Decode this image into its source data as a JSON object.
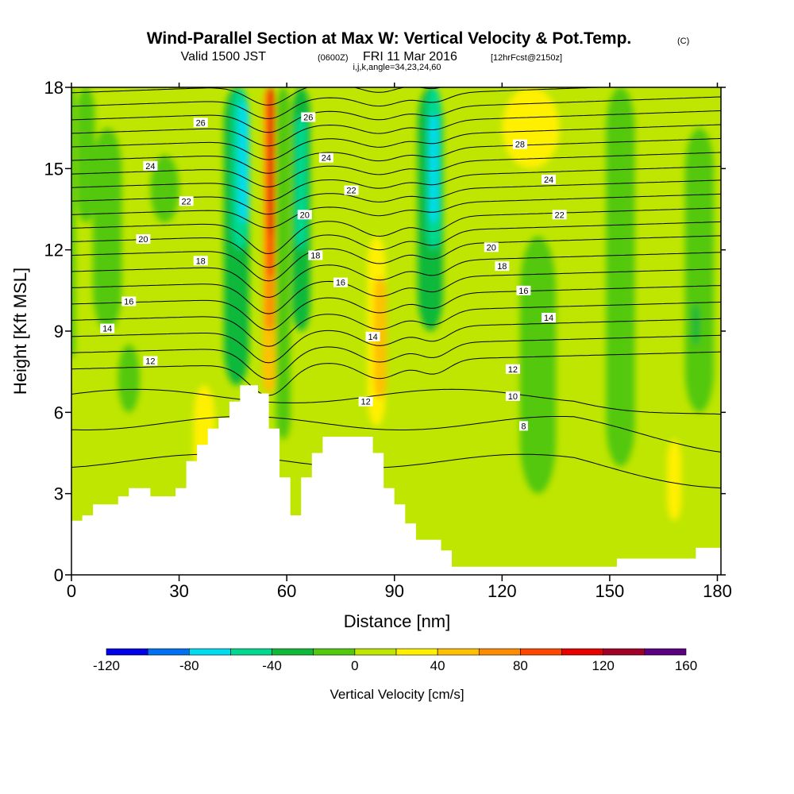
{
  "header": {
    "title": "Wind-Parallel Section at Max W: Vertical Velocity & Pot.Temp.",
    "copyright": "(C)",
    "valid_prefix": "Valid 1500 JST",
    "valid_utc": "(0600Z)",
    "valid_date": "FRI 11 Mar 2016",
    "forecast": "[12hrFcst@2150z]",
    "indices": "i,j,k,angle=34,23,24,60"
  },
  "chart_data": {
    "type": "heatmap",
    "title": "Wind-Parallel Section at Max W: Vertical Velocity & Pot.Temp.",
    "xlabel": "Distance [nm]",
    "ylabel": "Height [Kft MSL]",
    "xlim": [
      0,
      181
    ],
    "ylim": [
      0,
      18
    ],
    "xticks": [
      0,
      30,
      60,
      90,
      120,
      150,
      180
    ],
    "yticks": [
      0,
      3,
      6,
      9,
      12,
      15,
      18
    ],
    "colorbar": {
      "label": "Vertical Velocity [cm/s]",
      "tick_values": [
        -120,
        -80,
        -40,
        0,
        40,
        80,
        120,
        160
      ],
      "bins": [
        {
          "from": -120,
          "to": -100,
          "color": "#0000e6"
        },
        {
          "from": -100,
          "to": -80,
          "color": "#0070f0"
        },
        {
          "from": -80,
          "to": -60,
          "color": "#00dcf0"
        },
        {
          "from": -60,
          "to": -40,
          "color": "#00d890"
        },
        {
          "from": -40,
          "to": -20,
          "color": "#10b83a"
        },
        {
          "from": -20,
          "to": 0,
          "color": "#52c80e"
        },
        {
          "from": 0,
          "to": 20,
          "color": "#bee600"
        },
        {
          "from": 20,
          "to": 40,
          "color": "#fff000"
        },
        {
          "from": 40,
          "to": 60,
          "color": "#ffc000"
        },
        {
          "from": 60,
          "to": 80,
          "color": "#ff8c00"
        },
        {
          "from": 80,
          "to": 100,
          "color": "#ff4600"
        },
        {
          "from": 100,
          "to": 120,
          "color": "#e60000"
        },
        {
          "from": 120,
          "to": 140,
          "color": "#a00028"
        },
        {
          "from": 140,
          "to": 160,
          "color": "#5a0080"
        }
      ]
    },
    "terrain": [
      [
        0,
        0
      ],
      [
        0,
        2.0
      ],
      [
        3,
        2.0
      ],
      [
        3,
        2.2
      ],
      [
        6,
        2.2
      ],
      [
        6,
        2.6
      ],
      [
        13,
        2.6
      ],
      [
        13,
        2.9
      ],
      [
        16,
        2.9
      ],
      [
        16,
        3.2
      ],
      [
        22,
        3.2
      ],
      [
        22,
        2.9
      ],
      [
        29,
        2.9
      ],
      [
        29,
        3.2
      ],
      [
        32,
        3.2
      ],
      [
        32,
        4.2
      ],
      [
        35,
        4.2
      ],
      [
        35,
        4.8
      ],
      [
        38,
        4.8
      ],
      [
        38,
        5.4
      ],
      [
        41,
        5.4
      ],
      [
        41,
        5.8
      ],
      [
        44,
        5.8
      ],
      [
        44,
        6.4
      ],
      [
        47,
        6.4
      ],
      [
        47,
        7.0
      ],
      [
        52,
        7.0
      ],
      [
        52,
        6.7
      ],
      [
        55,
        6.7
      ],
      [
        55,
        5.4
      ],
      [
        58,
        5.4
      ],
      [
        58,
        3.6
      ],
      [
        61,
        3.6
      ],
      [
        61,
        2.2
      ],
      [
        64,
        2.2
      ],
      [
        64,
        3.6
      ],
      [
        67,
        3.6
      ],
      [
        67,
        4.5
      ],
      [
        70,
        4.5
      ],
      [
        70,
        5.1
      ],
      [
        84,
        5.1
      ],
      [
        84,
        4.5
      ],
      [
        87,
        4.5
      ],
      [
        87,
        3.2
      ],
      [
        90,
        3.2
      ],
      [
        90,
        2.6
      ],
      [
        93,
        2.6
      ],
      [
        93,
        1.9
      ],
      [
        96,
        1.9
      ],
      [
        96,
        1.3
      ],
      [
        103,
        1.3
      ],
      [
        103,
        0.9
      ],
      [
        106,
        0.9
      ],
      [
        106,
        0.3
      ],
      [
        152,
        0.3
      ],
      [
        152,
        0.6
      ],
      [
        174,
        0.6
      ],
      [
        174,
        1.0
      ],
      [
        181,
        1.0
      ],
      [
        181,
        0
      ]
    ],
    "theta_contour_labels": [
      {
        "x": 36,
        "y": 16.7,
        "text": "26"
      },
      {
        "x": 66,
        "y": 16.9,
        "text": "26"
      },
      {
        "x": 125,
        "y": 15.9,
        "text": "28"
      },
      {
        "x": 22,
        "y": 15.1,
        "text": "24"
      },
      {
        "x": 71,
        "y": 15.4,
        "text": "24"
      },
      {
        "x": 133,
        "y": 14.6,
        "text": "24"
      },
      {
        "x": 32,
        "y": 13.8,
        "text": "22"
      },
      {
        "x": 78,
        "y": 14.2,
        "text": "22"
      },
      {
        "x": 136,
        "y": 13.3,
        "text": "22"
      },
      {
        "x": 65,
        "y": 13.3,
        "text": "20"
      },
      {
        "x": 20,
        "y": 12.4,
        "text": "20"
      },
      {
        "x": 117,
        "y": 12.1,
        "text": "20"
      },
      {
        "x": 36,
        "y": 11.6,
        "text": "18"
      },
      {
        "x": 68,
        "y": 11.8,
        "text": "18"
      },
      {
        "x": 120,
        "y": 11.4,
        "text": "18"
      },
      {
        "x": 75,
        "y": 10.8,
        "text": "16"
      },
      {
        "x": 16,
        "y": 10.1,
        "text": "16"
      },
      {
        "x": 126,
        "y": 10.5,
        "text": "16"
      },
      {
        "x": 10,
        "y": 9.1,
        "text": "14"
      },
      {
        "x": 84,
        "y": 8.8,
        "text": "14"
      },
      {
        "x": 133,
        "y": 9.5,
        "text": "14"
      },
      {
        "x": 22,
        "y": 7.9,
        "text": "12"
      },
      {
        "x": 82,
        "y": 6.4,
        "text": "12"
      },
      {
        "x": 123,
        "y": 7.6,
        "text": "12"
      },
      {
        "x": 123,
        "y": 6.6,
        "text": "10"
      },
      {
        "x": 126,
        "y": 5.5,
        "text": "8"
      }
    ],
    "theta_contour_heights_at_x0": [
      7.6,
      8.2,
      8.8,
      9.4,
      10.0,
      10.6,
      11.2,
      11.8,
      12.3,
      12.8,
      13.3,
      13.8,
      14.3,
      14.8,
      15.3,
      15.8,
      16.3,
      16.8,
      17.3,
      17.8
    ],
    "w_features": [
      {
        "x": 0,
        "w": 2,
        "y0": 8,
        "y1": 18,
        "val": -10
      },
      {
        "x": 10,
        "w": 8,
        "y0": 9,
        "y1": 16.5,
        "val": -10
      },
      {
        "x": 4,
        "w": 5,
        "y0": 13,
        "y1": 18,
        "val": -10
      },
      {
        "x": 26,
        "w": 8,
        "y0": 13,
        "y1": 15.5,
        "val": -10
      },
      {
        "x": 16,
        "w": 6,
        "y0": 6,
        "y1": 8.5,
        "val": -10
      },
      {
        "x": 46,
        "w": 7,
        "y0": 7,
        "y1": 18,
        "val": -30
      },
      {
        "x": 47,
        "w": 4.5,
        "y0": 12,
        "y1": 18,
        "val": -50
      },
      {
        "x": 48,
        "w": 3,
        "y0": 13,
        "y1": 17.5,
        "val": -70
      },
      {
        "x": 55,
        "w": 3.4,
        "y0": 6.7,
        "y1": 18,
        "val": 50
      },
      {
        "x": 55.3,
        "w": 2.6,
        "y0": 9,
        "y1": 18,
        "val": 70
      },
      {
        "x": 55.5,
        "w": 2,
        "y0": 11,
        "y1": 18,
        "val": 90
      },
      {
        "x": 55.5,
        "w": 1.5,
        "y0": 12.5,
        "y1": 18,
        "val": 110
      },
      {
        "x": 59,
        "w": 4,
        "y0": 5,
        "y1": 18,
        "val": -10
      },
      {
        "x": 64,
        "w": 5,
        "y0": 9,
        "y1": 18,
        "val": -30
      },
      {
        "x": 64,
        "w": 3,
        "y0": 12,
        "y1": 17,
        "val": -50
      },
      {
        "x": 85,
        "w": 5,
        "y0": 5.5,
        "y1": 12.5,
        "val": 30
      },
      {
        "x": 86,
        "w": 3.5,
        "y0": 6.5,
        "y1": 11,
        "val": 50
      },
      {
        "x": 100,
        "w": 7,
        "y0": 9,
        "y1": 18,
        "val": -30
      },
      {
        "x": 101,
        "w": 4,
        "y0": 12,
        "y1": 18,
        "val": -50
      },
      {
        "x": 101,
        "w": 2.4,
        "y0": 13,
        "y1": 17,
        "val": -70
      },
      {
        "x": 128,
        "w": 16,
        "y0": 15,
        "y1": 18,
        "val": 30
      },
      {
        "x": 130,
        "w": 10,
        "y0": 3,
        "y1": 12.5,
        "val": -10
      },
      {
        "x": 153,
        "w": 8,
        "y0": 4,
        "y1": 18,
        "val": -10
      },
      {
        "x": 175,
        "w": 8,
        "y0": 6,
        "y1": 16.5,
        "val": -10
      },
      {
        "x": 174,
        "w": 2,
        "y0": 8.5,
        "y1": 10,
        "val": -30
      },
      {
        "x": 168,
        "w": 4,
        "y0": 2,
        "y1": 5,
        "val": 30
      },
      {
        "x": 37,
        "w": 6,
        "y0": 3.5,
        "y1": 7,
        "val": 30
      },
      {
        "x": 8,
        "w": 8,
        "y0": 1.8,
        "y1": 6,
        "val": 10
      }
    ],
    "grid": false
  }
}
